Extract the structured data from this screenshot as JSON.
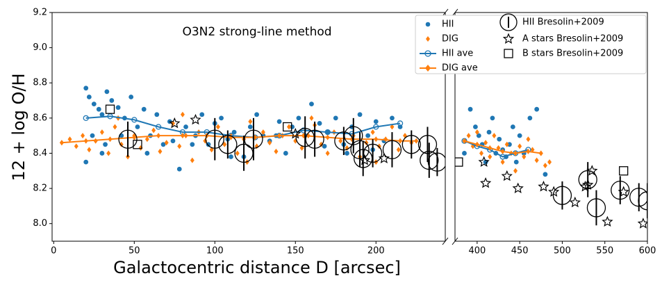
{
  "chart_data": [
    {
      "type": "scatter",
      "title": "O3N2 strong-line method",
      "xlabel": "Galactocentric distance D [arcsec]",
      "ylabel": "12 + log O/H",
      "xlim": [
        -1,
        243
      ],
      "xticks": [
        0,
        50,
        100,
        150,
        200
      ],
      "ylim": [
        7.9,
        9.2
      ],
      "yticks": [
        {
          "value": 8.0,
          "label": "8.0"
        },
        8.2,
        8.4,
        8.6,
        8.8,
        {
          "value": 9.0,
          "label": "9.0"
        },
        9.2
      ],
      "legend": "upper right",
      "series": [
        {
          "name": "HII",
          "color": "#1f77b4",
          "marker": "circle",
          "x": [
            20,
            22,
            25,
            28,
            30,
            33,
            36,
            40,
            44,
            48,
            52,
            56,
            60,
            64,
            68,
            72,
            78,
            82,
            88,
            92,
            96,
            100,
            104,
            108,
            112,
            118,
            122,
            126,
            130,
            134,
            140,
            144,
            148,
            152,
            156,
            160,
            165,
            170,
            175,
            180,
            185,
            190,
            195,
            200,
            205,
            210,
            215,
            20,
            24,
            32,
            42,
            58,
            74,
            86,
            110,
            138,
            168,
            182,
            198,
            30
          ],
          "values": [
            8.77,
            8.72,
            8.68,
            8.65,
            8.62,
            8.75,
            8.7,
            8.66,
            8.6,
            8.72,
            8.55,
            8.65,
            8.5,
            8.62,
            8.45,
            8.58,
            8.31,
            8.55,
            8.5,
            8.62,
            8.45,
            8.57,
            8.6,
            8.48,
            8.52,
            8.38,
            8.55,
            8.62,
            8.5,
            8.47,
            8.58,
            8.4,
            8.55,
            8.6,
            8.5,
            8.68,
            8.57,
            8.52,
            8.6,
            8.45,
            8.55,
            8.62,
            8.5,
            8.58,
            8.47,
            8.6,
            8.55,
            8.35,
            8.5,
            8.45,
            8.5,
            8.4,
            8.47,
            8.45,
            8.38,
            8.5,
            8.44,
            8.4,
            8.42,
            8.4
          ]
        },
        {
          "name": "DIG",
          "color": "#ff7f0e",
          "marker": "diamond",
          "x": [
            5,
            10,
            14,
            18,
            22,
            26,
            30,
            34,
            38,
            42,
            46,
            50,
            54,
            58,
            62,
            66,
            70,
            74,
            78,
            82,
            86,
            90,
            94,
            98,
            102,
            106,
            110,
            114,
            118,
            122,
            126,
            130,
            134,
            138,
            142,
            146,
            150,
            154,
            158,
            162,
            166,
            170,
            174,
            178,
            182,
            186,
            190,
            194,
            198,
            202,
            206,
            210,
            214,
            218,
            222,
            40,
            80,
            120,
            160,
            200
          ],
          "values": [
            8.46,
            8.48,
            8.44,
            8.5,
            8.42,
            8.47,
            8.52,
            8.4,
            8.55,
            8.45,
            8.38,
            8.5,
            8.43,
            8.48,
            8.53,
            8.41,
            8.46,
            8.57,
            8.44,
            8.5,
            8.36,
            8.52,
            8.47,
            8.42,
            8.55,
            8.45,
            8.5,
            8.4,
            8.48,
            8.58,
            8.44,
            8.52,
            8.46,
            8.41,
            8.5,
            8.55,
            8.47,
            8.43,
            8.5,
            8.56,
            8.45,
            8.4,
            8.52,
            8.47,
            8.43,
            8.5,
            8.38,
            8.46,
            8.52,
            8.44,
            8.48,
            8.55,
            8.42,
            8.5,
            8.46,
            8.6,
            8.62,
            8.35,
            8.6,
            8.35
          ]
        },
        {
          "name": "HII ave",
          "color": "#1f77b4",
          "marker": "line",
          "x": [
            20,
            35,
            50,
            65,
            80,
            95,
            110,
            125,
            140,
            155,
            170,
            185,
            200,
            215
          ],
          "values": [
            8.6,
            8.61,
            8.59,
            8.55,
            8.52,
            8.52,
            8.5,
            8.49,
            8.5,
            8.53,
            8.52,
            8.51,
            8.55,
            8.57
          ]
        },
        {
          "name": "DIG ave",
          "color": "#ff7f0e",
          "marker": "line",
          "x": [
            5,
            20,
            35,
            50,
            65,
            80,
            95,
            110,
            125,
            140,
            155,
            170,
            185,
            200,
            215,
            225
          ],
          "values": [
            8.46,
            8.47,
            8.48,
            8.49,
            8.5,
            8.5,
            8.5,
            8.49,
            8.49,
            8.5,
            8.5,
            8.49,
            8.48,
            8.48,
            8.47,
            8.47
          ]
        },
        {
          "name": "HII Bresolin+2009",
          "color": "#000000",
          "marker": "bigcircle",
          "x": [
            46,
            100,
            108,
            118,
            124,
            156,
            162,
            180,
            186,
            190,
            192,
            198,
            210,
            222,
            232,
            233,
            238
          ],
          "values": [
            8.48,
            8.48,
            8.45,
            8.4,
            8.48,
            8.49,
            8.48,
            8.47,
            8.5,
            8.42,
            8.37,
            8.4,
            8.42,
            8.45,
            8.45,
            8.36,
            8.35
          ],
          "errors": [
            0.1,
            0.12,
            0.08,
            0.1,
            0.12,
            0.12,
            0.1,
            0.08,
            0.1,
            0.1,
            0.1,
            0.08,
            0.1,
            0.08,
            0.1,
            0.1,
            0.08
          ]
        },
        {
          "name": "A stars Bresolin+2009",
          "color": "#000000",
          "marker": "star",
          "x": [
            75,
            88,
            150,
            193,
            205
          ],
          "values": [
            8.57,
            8.59,
            8.51,
            8.36,
            8.37
          ]
        },
        {
          "name": "B stars Bresolin+2009",
          "color": "#000000",
          "marker": "square",
          "x": [
            35,
            52,
            145
          ],
          "values": [
            8.65,
            8.45,
            8.55
          ]
        }
      ]
    },
    {
      "type": "scatter",
      "xlim": [
        374,
        600
      ],
      "xticks": [
        400,
        450,
        500,
        550,
        600
      ],
      "ylim": [
        7.9,
        9.2
      ],
      "series": [
        {
          "color": "#1f77b4",
          "marker": "circle",
          "x": [
            385,
            392,
            398,
            402,
            406,
            410,
            414,
            418,
            422,
            426,
            430,
            434,
            438,
            442,
            446,
            450,
            455,
            462,
            470,
            480
          ],
          "values": [
            8.4,
            8.65,
            8.55,
            8.5,
            8.45,
            8.35,
            8.52,
            8.6,
            8.4,
            8.48,
            8.42,
            8.38,
            8.45,
            8.55,
            8.35,
            8.5,
            8.4,
            8.6,
            8.65,
            8.28
          ]
        },
        {
          "color": "#ff7f0e",
          "marker": "diamond",
          "x": [
            386,
            390,
            395,
            400,
            405,
            410,
            415,
            420,
            425,
            430,
            435,
            440,
            445,
            450,
            455,
            460,
            465,
            470,
            475,
            480,
            485
          ],
          "values": [
            8.47,
            8.5,
            8.44,
            8.52,
            8.4,
            8.46,
            8.38,
            8.5,
            8.43,
            8.35,
            8.45,
            8.4,
            8.3,
            8.44,
            8.38,
            8.48,
            8.42,
            8.36,
            8.4,
            8.33,
            8.35
          ]
        },
        {
          "color": "#1f77b4",
          "marker": "line",
          "x": [
            385,
            400,
            415,
            430,
            445,
            460
          ],
          "values": [
            8.47,
            8.44,
            8.42,
            8.38,
            8.4,
            8.42
          ]
        },
        {
          "color": "#ff7f0e",
          "marker": "line",
          "x": [
            385,
            400,
            415,
            430,
            445,
            460,
            475
          ],
          "values": [
            8.47,
            8.45,
            8.43,
            8.41,
            8.4,
            8.41,
            8.4
          ]
        },
        {
          "color": "#000000",
          "marker": "bigcircle",
          "x": [
            500,
            530,
            540,
            568,
            590,
            600
          ],
          "values": [
            8.16,
            8.25,
            8.09,
            8.19,
            8.15,
            8.13
          ],
          "errors": [
            0.08,
            0.1,
            0.1,
            0.08,
            0.08,
            0.1
          ]
        },
        {
          "color": "#000000",
          "marker": "star",
          "x": [
            408,
            410,
            435,
            448,
            478,
            490,
            515,
            527,
            530,
            535,
            553,
            572,
            595
          ],
          "values": [
            8.35,
            8.23,
            8.27,
            8.2,
            8.21,
            8.18,
            8.12,
            8.21,
            8.22,
            8.3,
            8.01,
            8.18,
            8.0
          ]
        },
        {
          "color": "#000000",
          "marker": "square",
          "x": [
            378,
            572
          ],
          "values": [
            8.35,
            8.3
          ]
        }
      ]
    }
  ]
}
